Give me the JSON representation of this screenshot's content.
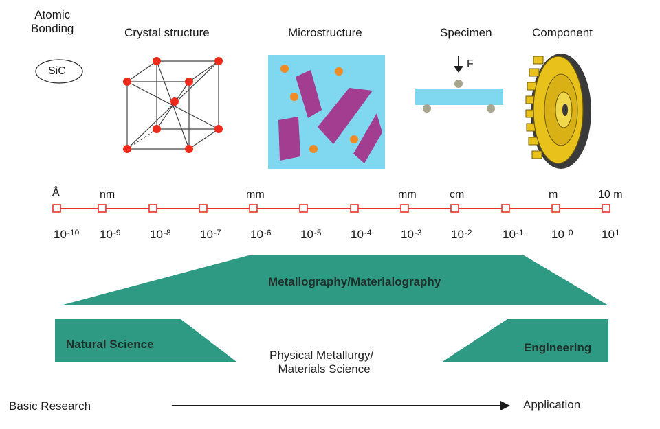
{
  "levels": {
    "atomic_bonding": "Atomic\nBonding",
    "sic": "SiC",
    "crystal_structure": "Crystal structure",
    "microstructure": "Microstructure",
    "specimen": "Specimen",
    "force": "F",
    "component": "Component"
  },
  "scale": {
    "units": [
      "Å",
      "nm",
      "mm",
      "mm",
      "cm",
      "m",
      "10 m"
    ],
    "exponents": [
      "-10",
      "-9",
      "-8",
      "-7",
      "-6",
      "-5",
      "-4",
      "-3",
      "-2",
      "-1",
      "0",
      "1"
    ],
    "base": "10"
  },
  "bands": {
    "metallography": "Metallography/Materialography",
    "natural_science": "Natural Science",
    "engineering": "Engineering",
    "physical_metallurgy_line1": "Physical Metallurgy/",
    "physical_metallurgy_line2": "Materials Science"
  },
  "axis": {
    "start": "Basic Research",
    "end": "Application"
  },
  "colors": {
    "scale_red": "#e8332a",
    "band_teal": "#2f9a84",
    "micro_bg": "#7fd8f0",
    "grain_purple": "#a23d8f",
    "dot_orange": "#f08a24",
    "atom_red": "#f02a1a",
    "gear_gold": "#e8c21a"
  }
}
